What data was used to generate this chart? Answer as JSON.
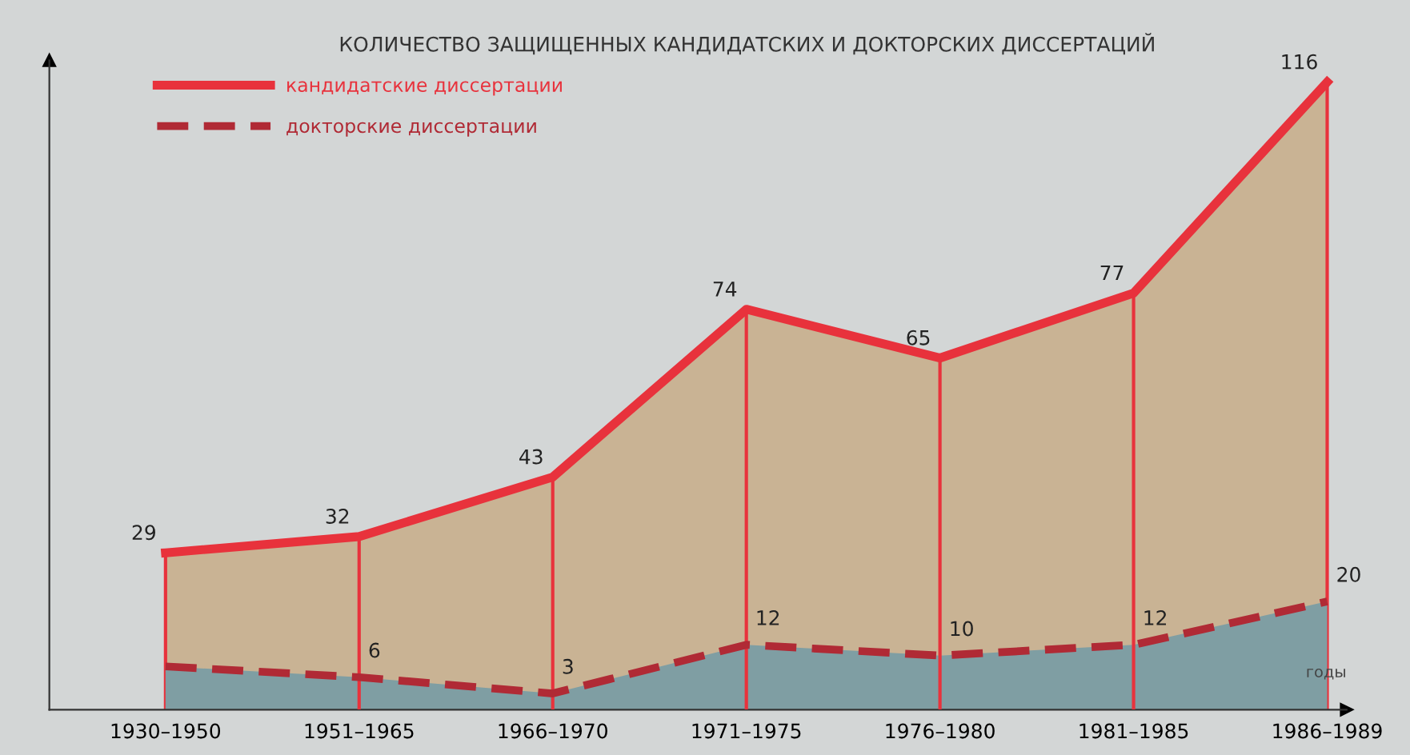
{
  "chart_data": {
    "type": "area",
    "title": "КОЛИЧЕСТВО ЗАЩИЩЕННЫХ КАНДИДАТСКИХ И ДОКТОРСКИХ ДИССЕРТАЦИЙ",
    "xlabel": "годы",
    "categories": [
      "1930–1950",
      "1951–1965",
      "1966–1970",
      "1971–1975",
      "1976–1980",
      "1981–1985",
      "1986–1989"
    ],
    "series": [
      {
        "name": "кандидатские диссертации",
        "color": "#e8323c",
        "line_style": "solid",
        "values": [
          29,
          32,
          43,
          74,
          65,
          77,
          116
        ],
        "value_labels": [
          "29",
          "32",
          "43",
          "74",
          "65",
          "77",
          "116"
        ]
      },
      {
        "name": "докторские диссертации",
        "color": "#b02a35",
        "line_style": "dashed",
        "values": [
          8,
          6,
          3,
          12,
          10,
          12,
          20
        ],
        "value_labels": [
          null,
          "6",
          "3",
          "12",
          "10",
          "12",
          "20"
        ]
      }
    ],
    "ylim": [
      0,
      120
    ],
    "tick_labels": "x",
    "legend": "top left",
    "grid": false
  }
}
